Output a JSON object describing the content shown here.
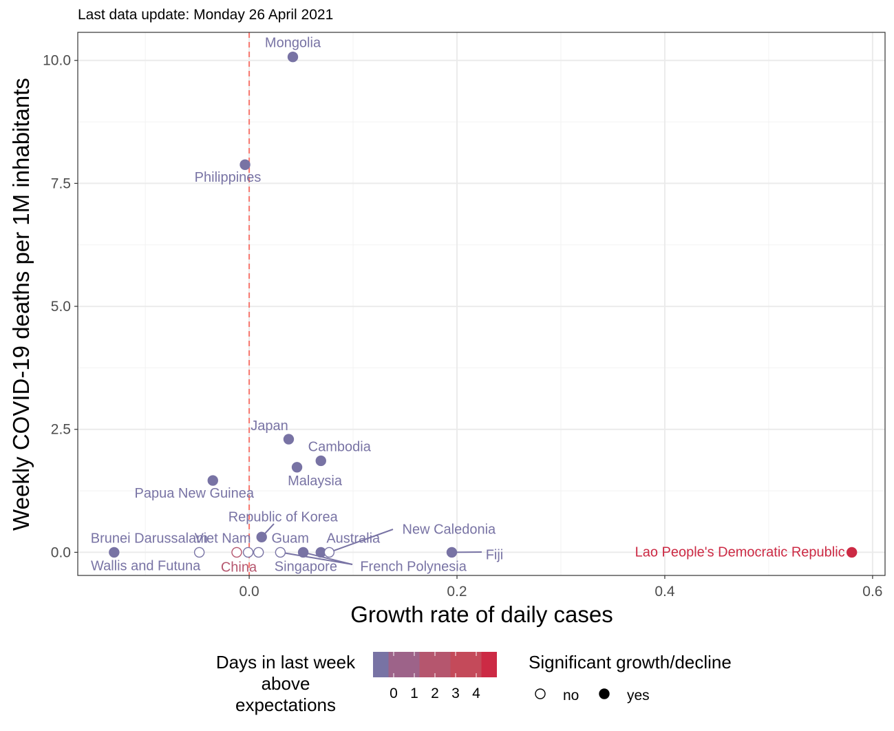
{
  "chart_data": {
    "type": "scatter",
    "subtitle": "Last data update: Monday 26 April 2021",
    "xlabel": "Growth rate of daily cases",
    "ylabel": "Weekly COVID-19 deaths per 1M inhabitants",
    "xlim": [
      -0.165,
      0.612
    ],
    "ylim": [
      -0.47,
      10.57
    ],
    "x_ticks": [
      0.0,
      0.2,
      0.4,
      0.6
    ],
    "x_tick_labels": [
      "0.0",
      "0.2",
      "0.4",
      "0.6"
    ],
    "y_ticks": [
      0.0,
      2.5,
      5.0,
      7.5,
      10.0
    ],
    "y_tick_labels": [
      "0.0",
      "2.5",
      "5.0",
      "7.5",
      "10.0"
    ],
    "grid": true,
    "reference_line": {
      "x": 0,
      "style": "dashed",
      "color": "#f8766d"
    },
    "points": [
      {
        "label": "Mongolia",
        "x": 0.042,
        "y": 10.07,
        "days": 0,
        "significant": true
      },
      {
        "label": "Philippines",
        "x": -0.004,
        "y": 7.88,
        "days": 0,
        "significant": true
      },
      {
        "label": "Japan",
        "x": 0.038,
        "y": 2.3,
        "days": 0,
        "significant": true
      },
      {
        "label": "Cambodia",
        "x": 0.069,
        "y": 1.86,
        "days": 0,
        "significant": true
      },
      {
        "label": "Malaysia",
        "x": 0.046,
        "y": 1.73,
        "days": 0,
        "significant": true
      },
      {
        "label": "Papua New Guinea",
        "x": -0.035,
        "y": 1.46,
        "days": 0,
        "significant": true
      },
      {
        "label": "Republic of Korea",
        "x": 0.012,
        "y": 0.31,
        "days": 0,
        "significant": true
      },
      {
        "label": "Brunei Darussalam",
        "x": -0.13,
        "y": 0.0,
        "days": 0,
        "significant": true
      },
      {
        "label": "Wallis and Futuna",
        "x": -0.048,
        "y": 0.0,
        "days": 0,
        "significant": false
      },
      {
        "label": "China",
        "x": -0.012,
        "y": 0.0,
        "days": 2,
        "significant": false
      },
      {
        "label": "Viet Nam",
        "x": -0.001,
        "y": 0.0,
        "days": 0,
        "significant": false
      },
      {
        "label": "Guam",
        "x": 0.009,
        "y": 0.0,
        "days": 0,
        "significant": false
      },
      {
        "label": "Singapore",
        "x": 0.03,
        "y": 0.0,
        "days": 0,
        "significant": false
      },
      {
        "label": "French Polynesia",
        "x": 0.052,
        "y": 0.0,
        "days": 0,
        "significant": true
      },
      {
        "label": "Australia",
        "x": 0.069,
        "y": 0.0,
        "days": 0,
        "significant": true
      },
      {
        "label": "New Caledonia",
        "x": 0.077,
        "y": 0.0,
        "days": 0,
        "significant": false
      },
      {
        "label": "Fiji",
        "x": 0.195,
        "y": 0.0,
        "days": 0,
        "significant": true
      },
      {
        "label": "Lao People's Democratic Republic",
        "x": 0.58,
        "y": 0.0,
        "days": 4,
        "significant": true
      }
    ],
    "legend": {
      "placement": "bottom",
      "color_title": "Days in last week above expectations",
      "color_title_lines": [
        "Days in last week",
        "above",
        "expectations"
      ],
      "color_labels": [
        "0",
        "1",
        "2",
        "3",
        "4"
      ],
      "color_scale": [
        "#7873a4",
        "#9d6389",
        "#b5566e",
        "#c44a5a",
        "#cc2a44"
      ],
      "shape_title": "Significant growth/decline",
      "shape_entries": [
        "no",
        "yes"
      ]
    }
  }
}
